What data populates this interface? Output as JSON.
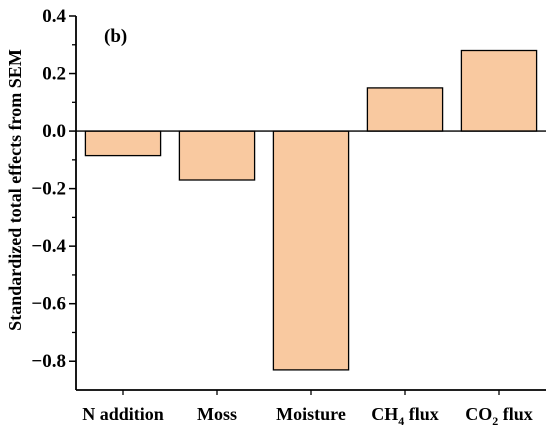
{
  "chart_data": {
    "type": "bar",
    "panel_label": "(b)",
    "title": "",
    "xlabel": "",
    "ylabel": "Standardized total effects from SEM",
    "categories": [
      "N addition",
      "Moss",
      "Moisture",
      "CH4 flux",
      "CO2 flux"
    ],
    "category_display": [
      {
        "main": "N addition",
        "sub": "",
        "tail": ""
      },
      {
        "main": "Moss",
        "sub": "",
        "tail": ""
      },
      {
        "main": "Moisture",
        "sub": "",
        "tail": ""
      },
      {
        "main": "CH",
        "sub": "4",
        "tail": " flux"
      },
      {
        "main": "CO",
        "sub": "2",
        "tail": " flux"
      }
    ],
    "values": [
      -0.085,
      -0.17,
      -0.83,
      0.15,
      0.28
    ],
    "ylim": [
      -0.9,
      0.4
    ],
    "yticks": [
      0.4,
      0.2,
      0.0,
      -0.2,
      -0.4,
      -0.6,
      -0.8
    ],
    "ytick_labels": [
      "0.4",
      "0.2",
      "0.0",
      "−0.2",
      "−0.4",
      "−0.6",
      "−0.8"
    ],
    "grid": false,
    "bar_color": "#f9c9a0",
    "bar_edge_color": "#000000"
  }
}
